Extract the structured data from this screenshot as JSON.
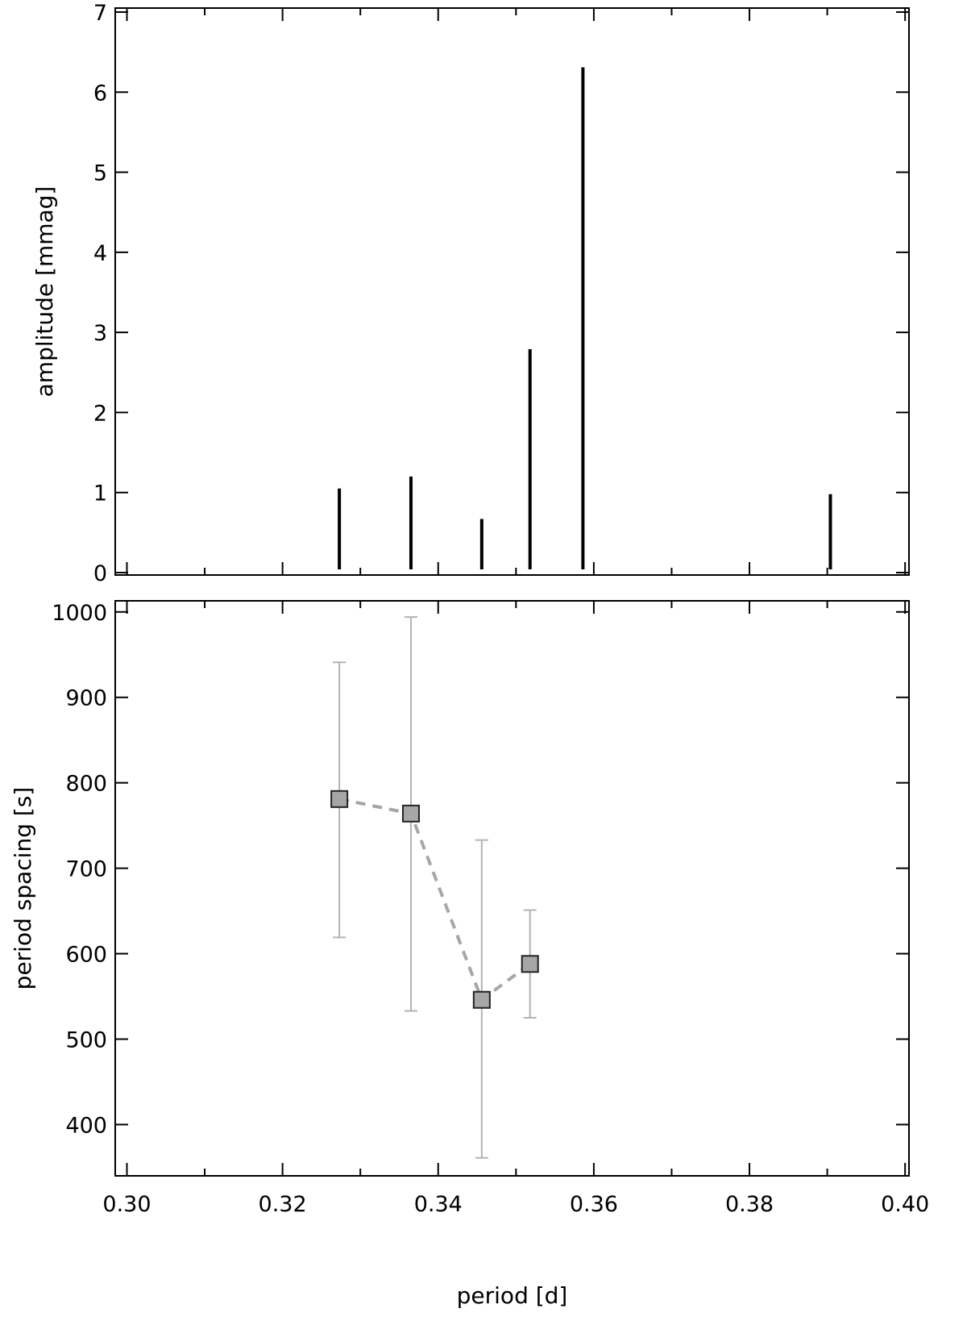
{
  "chart_data": [
    {
      "type": "bar",
      "panel": "top",
      "title": "",
      "xlabel": "",
      "ylabel": "amplitude [mmag]",
      "xlim": [
        0.2985,
        0.4005
      ],
      "ylim": [
        -0.03,
        7.05
      ],
      "x_ticks": [
        0.3,
        0.32,
        0.34,
        0.36,
        0.38,
        0.4
      ],
      "x_minor_ticks": [
        0.31,
        0.33,
        0.35,
        0.37,
        0.39
      ],
      "y_ticks": [
        0,
        1,
        2,
        3,
        4,
        5,
        6,
        7
      ],
      "y_tick_labels": [
        "0",
        "1",
        "2",
        "3",
        "4",
        "5",
        "6",
        "7"
      ],
      "grid": false,
      "bar_color": "#000000",
      "series": [
        {
          "x": [
            0.3273,
            0.3365,
            0.3456,
            0.3518,
            0.3586,
            0.3904
          ],
          "values": [
            1.05,
            1.2,
            0.67,
            2.79,
            6.31,
            0.98
          ]
        }
      ]
    },
    {
      "type": "scatter",
      "panel": "bottom",
      "title": "",
      "xlabel": "period [d]",
      "ylabel": "period spacing [s]",
      "xlim": [
        0.2985,
        0.4005
      ],
      "ylim": [
        340,
        1013
      ],
      "x_ticks": [
        0.3,
        0.32,
        0.34,
        0.36,
        0.38,
        0.4
      ],
      "x_tick_labels": [
        "0.30",
        "0.32",
        "0.34",
        "0.36",
        "0.38",
        "0.40"
      ],
      "x_minor_ticks": [
        0.31,
        0.33,
        0.35,
        0.37,
        0.39
      ],
      "y_ticks": [
        400,
        500,
        600,
        700,
        800,
        900,
        1000
      ],
      "y_tick_labels": [
        "400",
        "500",
        "600",
        "700",
        "800",
        "900",
        "1000"
      ],
      "grid": false,
      "marker": "square",
      "marker_color": "#a6a6a6",
      "line_style": "dashed",
      "line_color": "#a6a6a6",
      "errorbar_color": "#b3b3b3",
      "series": [
        {
          "x": [
            0.3273,
            0.3365,
            0.3456,
            0.3518
          ],
          "y": [
            781,
            764,
            546,
            588
          ],
          "yerr_low": [
            619,
            533,
            361,
            525
          ],
          "yerr_high": [
            941,
            994,
            733,
            651
          ]
        }
      ]
    }
  ]
}
